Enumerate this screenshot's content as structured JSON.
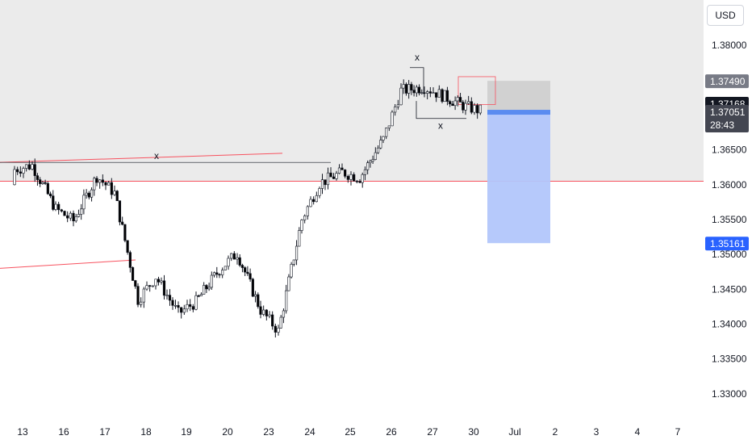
{
  "currency": "USD",
  "chart_data": {
    "type": "candlestick",
    "ylim": [
      1.3265,
      1.3865
    ],
    "y_ticks": [
      {
        "value": 1.38,
        "label": "1.38000"
      },
      {
        "value": 1.365,
        "label": "1.36500"
      },
      {
        "value": 1.36,
        "label": "1.36000"
      },
      {
        "value": 1.355,
        "label": "1.35500"
      },
      {
        "value": 1.35,
        "label": "1.35000"
      },
      {
        "value": 1.345,
        "label": "1.34500"
      },
      {
        "value": 1.34,
        "label": "1.34000"
      },
      {
        "value": 1.335,
        "label": "1.33500"
      },
      {
        "value": 1.33,
        "label": "1.33000"
      }
    ],
    "x_ticks": [
      "13",
      "16",
      "17",
      "18",
      "19",
      "20",
      "23",
      "24",
      "25",
      "26",
      "27",
      "30",
      "Jul",
      "2",
      "3",
      "4",
      "7"
    ],
    "price_tags": [
      {
        "label": "1.37490",
        "value": 1.3749,
        "color": "#787b86"
      },
      {
        "label": "1.37168",
        "value": 1.37168,
        "color": "#131722"
      },
      {
        "label": "1.37051",
        "value": 1.37051,
        "color": "#434651",
        "sub": "28:43"
      },
      {
        "label": "1.35161",
        "value": 1.35161,
        "color": "#2962ff"
      }
    ],
    "annotations": [
      "x",
      "x",
      "x"
    ],
    "colors": {
      "up": "#ffffff",
      "down": "#000000",
      "wick": "#131722",
      "zone": "#ebebeb",
      "short_target": "#b2c6fb",
      "short_stop": "#d1d1d1",
      "line": "#f7525f"
    },
    "close_points": [
      {
        "x": "13",
        "y": 1.3622
      },
      {
        "x": "13",
        "y": 1.3628
      },
      {
        "x": "16",
        "y": 1.3565
      },
      {
        "x": "16",
        "y": 1.3548
      },
      {
        "x": "17",
        "y": 1.3612
      },
      {
        "x": "17",
        "y": 1.3588
      },
      {
        "x": "18",
        "y": 1.3435
      },
      {
        "x": "18",
        "y": 1.3468
      },
      {
        "x": "19",
        "y": 1.3415
      },
      {
        "x": "19",
        "y": 1.3432
      },
      {
        "x": "20",
        "y": 1.3478
      },
      {
        "x": "20",
        "y": 1.3502
      },
      {
        "x": "23",
        "y": 1.342
      },
      {
        "x": "23",
        "y": 1.339
      },
      {
        "x": "24",
        "y": 1.355
      },
      {
        "x": "24",
        "y": 1.3602
      },
      {
        "x": "25",
        "y": 1.3618
      },
      {
        "x": "25",
        "y": 1.361
      },
      {
        "x": "26",
        "y": 1.3665
      },
      {
        "x": "26",
        "y": 1.3735
      },
      {
        "x": "27",
        "y": 1.374
      },
      {
        "x": "27",
        "y": 1.3728
      },
      {
        "x": "30",
        "y": 1.3712
      },
      {
        "x": "30",
        "y": 1.37051
      }
    ]
  }
}
